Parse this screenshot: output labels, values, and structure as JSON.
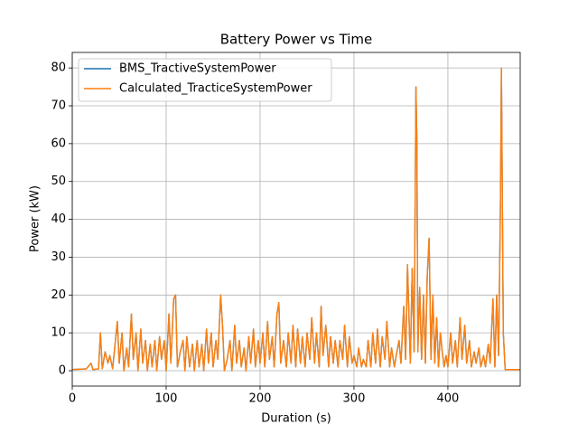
{
  "chart_data": {
    "type": "line",
    "title": "Battery Power vs Time",
    "xlabel": "Duration (s)",
    "ylabel": "Power (kW)",
    "x": [
      0,
      15,
      20,
      22,
      28,
      30,
      32,
      35,
      38,
      40,
      43,
      46,
      48,
      50,
      53,
      55,
      58,
      60,
      63,
      65,
      68,
      70,
      73,
      75,
      78,
      80,
      83,
      85,
      88,
      90,
      93,
      95,
      98,
      100,
      103,
      105,
      108,
      110,
      112,
      115,
      118,
      120,
      122,
      125,
      128,
      130,
      133,
      135,
      138,
      140,
      143,
      145,
      148,
      150,
      153,
      155,
      158,
      160,
      162,
      165,
      168,
      170,
      173,
      175,
      178,
      180,
      183,
      185,
      188,
      190,
      193,
      195,
      198,
      200,
      203,
      205,
      208,
      210,
      213,
      215,
      218,
      220,
      222,
      225,
      228,
      230,
      233,
      235,
      238,
      240,
      243,
      245,
      248,
      250,
      253,
      255,
      258,
      260,
      263,
      265,
      267,
      270,
      273,
      275,
      278,
      280,
      283,
      285,
      288,
      290,
      293,
      295,
      298,
      300,
      303,
      305,
      308,
      310,
      313,
      315,
      318,
      320,
      323,
      325,
      328,
      330,
      333,
      335,
      338,
      340,
      343,
      345,
      348,
      350,
      353,
      355,
      357,
      360,
      362,
      364,
      366,
      367,
      368,
      370,
      372,
      374,
      376,
      378,
      380,
      382,
      384,
      386,
      388,
      390,
      392,
      394,
      396,
      398,
      400,
      403,
      405,
      408,
      410,
      413,
      415,
      418,
      420,
      423,
      425,
      428,
      430,
      433,
      435,
      438,
      440,
      443,
      445,
      448,
      450,
      452,
      454,
      456,
      457,
      459,
      461,
      477
    ],
    "series": [
      {
        "name": "BMS_TractiveSystemPower",
        "color": "#1f77b4",
        "values": [
          0.3,
          0.5,
          2,
          0.3,
          0.5,
          10,
          0.5,
          5,
          2,
          4,
          0.5,
          8,
          13,
          2,
          10,
          0,
          6,
          1,
          15,
          3,
          10,
          0,
          11,
          2,
          8,
          0,
          7,
          1,
          8,
          0,
          9,
          3,
          8,
          0,
          15,
          2,
          19,
          20,
          1,
          5,
          8,
          0,
          9,
          1,
          7,
          0,
          8,
          1,
          7,
          0,
          11,
          2,
          10,
          1,
          8,
          3,
          20,
          12,
          0,
          3,
          8,
          0,
          12,
          2,
          8,
          1,
          6,
          0,
          9,
          2,
          11,
          1,
          8,
          2,
          10,
          1,
          13,
          3,
          9,
          1,
          15,
          18,
          2,
          8,
          1,
          10,
          2,
          12,
          1,
          11,
          2,
          9,
          1,
          10,
          3,
          14,
          2,
          10,
          1,
          17,
          4,
          12,
          1,
          9,
          2,
          8,
          1,
          8,
          3,
          12,
          1,
          9,
          2,
          4,
          1,
          6,
          1,
          3,
          1,
          8,
          1,
          10,
          2,
          11,
          1,
          9,
          3,
          13,
          1,
          6,
          1,
          4,
          8,
          2,
          17,
          3,
          28,
          2,
          27,
          5,
          75,
          60,
          5,
          22,
          3,
          20,
          2,
          25,
          35,
          3,
          20,
          2,
          14,
          1,
          10,
          5,
          1,
          4,
          1,
          10,
          2,
          8,
          1,
          14,
          3,
          12,
          2,
          8,
          1,
          5,
          2,
          6,
          1,
          4,
          1,
          7,
          2,
          19,
          1,
          20,
          4,
          45,
          80,
          10,
          0.3,
          0.3
        ]
      },
      {
        "name": "Calculated_TracticeSystemPower",
        "color": "#ff7f0e",
        "values": [
          0.3,
          0.5,
          2,
          0.3,
          0.5,
          10,
          0.5,
          5,
          2,
          4,
          0.5,
          8,
          13,
          2,
          10,
          0,
          6,
          1,
          15,
          3,
          10,
          0,
          11,
          2,
          8,
          0,
          7,
          1,
          8,
          0,
          9,
          3,
          8,
          0,
          15,
          2,
          19,
          20,
          1,
          5,
          8,
          0,
          9,
          1,
          7,
          0,
          8,
          1,
          7,
          0,
          11,
          2,
          10,
          1,
          8,
          3,
          20,
          12,
          0,
          3,
          8,
          0,
          12,
          2,
          8,
          1,
          6,
          0,
          9,
          2,
          11,
          1,
          8,
          2,
          10,
          1,
          13,
          3,
          9,
          1,
          15,
          18,
          2,
          8,
          1,
          10,
          2,
          12,
          1,
          11,
          2,
          9,
          1,
          10,
          3,
          14,
          2,
          10,
          1,
          17,
          4,
          12,
          1,
          9,
          2,
          8,
          1,
          8,
          3,
          12,
          1,
          9,
          2,
          4,
          1,
          6,
          1,
          3,
          1,
          8,
          1,
          10,
          2,
          11,
          1,
          9,
          3,
          13,
          1,
          6,
          1,
          4,
          8,
          2,
          17,
          3,
          28,
          2,
          27,
          5,
          75,
          60,
          5,
          22,
          3,
          20,
          2,
          25,
          35,
          3,
          20,
          2,
          14,
          1,
          10,
          5,
          1,
          4,
          1,
          10,
          2,
          8,
          1,
          14,
          3,
          12,
          2,
          8,
          1,
          5,
          2,
          6,
          1,
          4,
          1,
          7,
          2,
          19,
          1,
          20,
          4,
          45,
          80,
          10,
          0.3,
          0.3
        ]
      }
    ],
    "xlim": [
      0,
      477
    ],
    "xticks": [
      0,
      100,
      200,
      300,
      400
    ],
    "ylim": [
      -4.06,
      84.1
    ],
    "yticks": [
      0,
      10,
      20,
      30,
      40,
      50,
      60,
      70,
      80
    ],
    "grid": true,
    "legend": "upper left"
  }
}
